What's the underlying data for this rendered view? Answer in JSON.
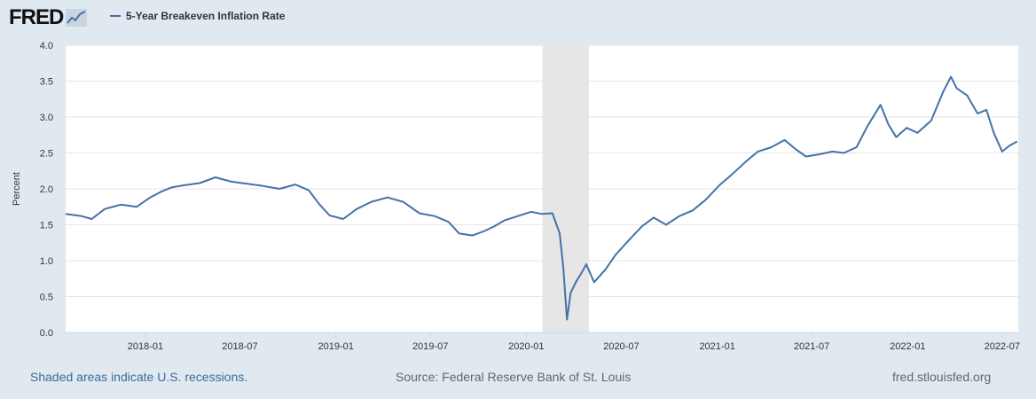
{
  "header": {
    "logo_text": "FRED",
    "legend_label": "5-Year Breakeven Inflation Rate"
  },
  "footer": {
    "recession_note": "Shaded areas indicate U.S. recessions.",
    "source": "Source: Federal Reserve Bank of St. Louis",
    "site": "fred.stlouisfed.org"
  },
  "colors": {
    "series": "#4572a7",
    "recession": "#e6e6e6",
    "background": "#e1e9f0",
    "plot": "#ffffff",
    "grid": "#e6e6e6"
  },
  "chart_data": {
    "type": "line",
    "title": "",
    "xlabel": "",
    "ylabel": "Percent",
    "ylim": [
      0,
      4
    ],
    "yticks": [
      "0.0",
      "0.5",
      "1.0",
      "1.5",
      "2.0",
      "2.5",
      "3.0",
      "3.5",
      "4.0"
    ],
    "xlim": [
      "2017-08-01",
      "2022-08-01"
    ],
    "xticks": [
      "2018-01",
      "2018-07",
      "2019-01",
      "2019-07",
      "2020-01",
      "2020-07",
      "2021-01",
      "2021-07",
      "2022-01",
      "2022-07"
    ],
    "grid": true,
    "legend": "top-left",
    "recessions": [
      {
        "start": "2020-02-01",
        "end": "2020-04-30"
      }
    ],
    "series": [
      {
        "name": "5-Year Breakeven Inflation Rate",
        "points": [
          [
            "2017-08-01",
            1.65
          ],
          [
            "2017-09-01",
            1.62
          ],
          [
            "2017-09-20",
            1.58
          ],
          [
            "2017-10-15",
            1.72
          ],
          [
            "2017-11-15",
            1.78
          ],
          [
            "2017-12-15",
            1.75
          ],
          [
            "2018-01-10",
            1.88
          ],
          [
            "2018-01-31",
            1.96
          ],
          [
            "2018-02-20",
            2.02
          ],
          [
            "2018-03-15",
            2.05
          ],
          [
            "2018-04-15",
            2.08
          ],
          [
            "2018-05-15",
            2.16
          ],
          [
            "2018-06-15",
            2.1
          ],
          [
            "2018-07-15",
            2.07
          ],
          [
            "2018-08-15",
            2.04
          ],
          [
            "2018-09-15",
            2.0
          ],
          [
            "2018-10-15",
            2.06
          ],
          [
            "2018-11-10",
            1.98
          ],
          [
            "2018-12-01",
            1.78
          ],
          [
            "2018-12-20",
            1.63
          ],
          [
            "2019-01-15",
            1.58
          ],
          [
            "2019-02-10",
            1.72
          ],
          [
            "2019-03-10",
            1.82
          ],
          [
            "2019-04-10",
            1.88
          ],
          [
            "2019-05-10",
            1.82
          ],
          [
            "2019-06-10",
            1.66
          ],
          [
            "2019-07-10",
            1.62
          ],
          [
            "2019-08-05",
            1.54
          ],
          [
            "2019-08-25",
            1.38
          ],
          [
            "2019-09-20",
            1.35
          ],
          [
            "2019-10-15",
            1.42
          ],
          [
            "2019-11-01",
            1.48
          ],
          [
            "2019-11-20",
            1.56
          ],
          [
            "2019-12-15",
            1.62
          ],
          [
            "2020-01-10",
            1.68
          ],
          [
            "2020-01-31",
            1.65
          ],
          [
            "2020-02-20",
            1.66
          ],
          [
            "2020-03-05",
            1.38
          ],
          [
            "2020-03-12",
            0.9
          ],
          [
            "2020-03-19",
            0.18
          ],
          [
            "2020-03-26",
            0.55
          ],
          [
            "2020-04-05",
            0.7
          ],
          [
            "2020-04-15",
            0.82
          ],
          [
            "2020-04-25",
            0.95
          ],
          [
            "2020-05-10",
            0.7
          ],
          [
            "2020-06-01",
            0.88
          ],
          [
            "2020-06-20",
            1.08
          ],
          [
            "2020-07-15",
            1.28
          ],
          [
            "2020-08-10",
            1.48
          ],
          [
            "2020-09-01",
            1.6
          ],
          [
            "2020-09-25",
            1.5
          ],
          [
            "2020-10-20",
            1.62
          ],
          [
            "2020-11-15",
            1.7
          ],
          [
            "2020-12-10",
            1.85
          ],
          [
            "2021-01-05",
            2.05
          ],
          [
            "2021-02-01",
            2.22
          ],
          [
            "2021-02-25",
            2.38
          ],
          [
            "2021-03-20",
            2.52
          ],
          [
            "2021-04-15",
            2.58
          ],
          [
            "2021-05-10",
            2.68
          ],
          [
            "2021-06-01",
            2.55
          ],
          [
            "2021-06-20",
            2.45
          ],
          [
            "2021-07-15",
            2.48
          ],
          [
            "2021-08-10",
            2.52
          ],
          [
            "2021-09-01",
            2.5
          ],
          [
            "2021-09-25",
            2.58
          ],
          [
            "2021-10-15",
            2.86
          ],
          [
            "2021-11-10",
            3.17
          ],
          [
            "2021-11-25",
            2.9
          ],
          [
            "2021-12-10",
            2.72
          ],
          [
            "2021-12-30",
            2.85
          ],
          [
            "2022-01-20",
            2.78
          ],
          [
            "2022-02-15",
            2.95
          ],
          [
            "2022-03-10",
            3.35
          ],
          [
            "2022-03-25",
            3.56
          ],
          [
            "2022-04-05",
            3.4
          ],
          [
            "2022-04-25",
            3.3
          ],
          [
            "2022-05-15",
            3.05
          ],
          [
            "2022-06-01",
            3.1
          ],
          [
            "2022-06-15",
            2.78
          ],
          [
            "2022-07-01",
            2.52
          ],
          [
            "2022-07-15",
            2.6
          ],
          [
            "2022-07-30",
            2.66
          ]
        ]
      }
    ]
  }
}
